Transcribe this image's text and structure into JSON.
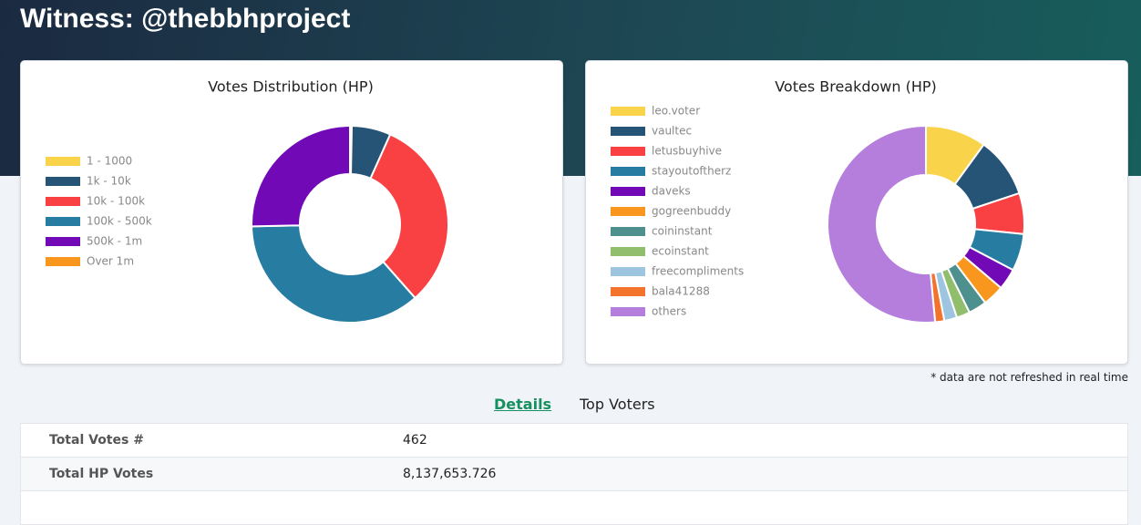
{
  "header": {
    "title": "Witness: @thebbhproject"
  },
  "chart_data": [
    {
      "type": "pie",
      "title": "Votes Distribution (HP)",
      "categories": [
        "1 - 1000",
        "1k - 10k",
        "10k - 100k",
        "100k - 500k",
        "500k - 1m",
        "Over 1m"
      ],
      "values": [
        0.3,
        6.4,
        31.7,
        36.1,
        25.3,
        0
      ],
      "colors": [
        "#f9d44a",
        "#265477",
        "#f94144",
        "#277da1",
        "#7209b7",
        "#f8961e"
      ],
      "legend": "left"
    },
    {
      "type": "pie",
      "title": "Votes Breakdown (HP)",
      "categories": [
        "leo.voter",
        "vaultec",
        "letusbuyhive",
        "stayoutoftherz",
        "daveks",
        "gogreenbuddy",
        "coininstant",
        "ecoinstant",
        "freecompliments",
        "bala41288",
        "others"
      ],
      "values": [
        10,
        9.9,
        6.7,
        6.1,
        3.5,
        3.5,
        3,
        2.2,
        2.1,
        1.5,
        51.5
      ],
      "colors": [
        "#f9d44a",
        "#265477",
        "#f94144",
        "#277da1",
        "#7209b7",
        "#f8961e",
        "#4d908e",
        "#90be6d",
        "#9ec5e0",
        "#f3722c",
        "#b57edc"
      ],
      "legend": "top-left"
    }
  ],
  "footnote": "* data are not refreshed in real time",
  "tabs": [
    "Details",
    "Top Voters"
  ],
  "table": {
    "rows": [
      [
        "Total Votes #",
        "462"
      ],
      [
        "Total HP Votes",
        "8,137,653.726"
      ]
    ]
  }
}
